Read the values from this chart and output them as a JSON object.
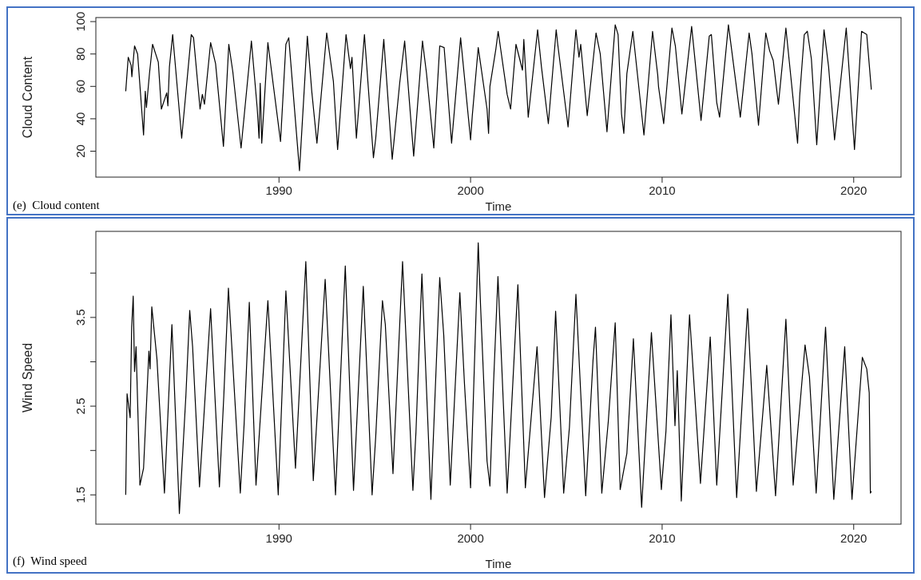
{
  "chart_data": [
    {
      "type": "line",
      "xlabel": "Time",
      "ylabel": "Cloud Content",
      "annotations": [
        "(e)  Cloud content"
      ],
      "xlim": [
        1980.44,
        2022.47
      ],
      "xticks": [
        1990,
        2000,
        2010,
        2020
      ],
      "ylim": [
        4,
        102.5
      ],
      "yticks": [
        20,
        40,
        60,
        80,
        100
      ],
      "x": [
        1982.0,
        1982.13,
        1982.28,
        1982.32,
        1982.46,
        1982.62,
        1982.93,
        1983.02,
        1983.08,
        1983.24,
        1983.4,
        1983.7,
        1983.86,
        1984.14,
        1984.2,
        1984.28,
        1984.45,
        1984.92,
        1985.42,
        1985.54,
        1985.88,
        1986.0,
        1986.11,
        1986.43,
        1986.69,
        1987.1,
        1987.38,
        1987.59,
        1988.02,
        1988.56,
        1988.86,
        1988.96,
        1989.02,
        1989.1,
        1989.42,
        1990.08,
        1990.36,
        1990.51,
        1991.07,
        1991.48,
        1991.71,
        1991.98,
        1992.49,
        1992.84,
        1993.06,
        1993.5,
        1993.73,
        1993.81,
        1994.04,
        1994.46,
        1994.93,
        1995.05,
        1995.47,
        1995.91,
        1996.3,
        1996.56,
        1997.03,
        1997.49,
        1997.7,
        1998.08,
        1998.39,
        1998.62,
        1999.01,
        1999.48,
        2000.0,
        2000.09,
        2000.4,
        2000.86,
        2000.94,
        2001.01,
        2001.32,
        2001.44,
        2001.91,
        2002.09,
        2002.37,
        2002.71,
        2002.78,
        2003.01,
        2003.5,
        2003.7,
        2004.06,
        2004.47,
        2004.55,
        2005.09,
        2005.5,
        2005.66,
        2005.75,
        2006.09,
        2006.55,
        2006.77,
        2007.12,
        2007.55,
        2007.7,
        2007.88,
        2008.0,
        2008.16,
        2008.47,
        2009.05,
        2009.5,
        2009.77,
        2009.81,
        2010.08,
        2010.51,
        2010.69,
        2011.03,
        2011.54,
        2012.03,
        2012.46,
        2012.57,
        2012.85,
        2013.0,
        2013.46,
        2014.08,
        2014.54,
        2014.69,
        2015.03,
        2015.41,
        2015.61,
        2015.8,
        2016.07,
        2016.46,
        2017.07,
        2017.18,
        2017.42,
        2017.58,
        2017.79,
        2018.07,
        2018.45,
        2018.69,
        2019.0,
        2019.61,
        2020.04,
        2020.41,
        2020.68,
        2020.92
      ],
      "series": [
        {
          "color": "#000000",
          "values": [
            57,
            78,
            73,
            66,
            85,
            80,
            30,
            57,
            47,
            68,
            86,
            75,
            46,
            56,
            48,
            72,
            92,
            28,
            92,
            90,
            46,
            55,
            49,
            87,
            74,
            23,
            86,
            69,
            22,
            88,
            47,
            28,
            62,
            25,
            87,
            26,
            86,
            90,
            8,
            91,
            57,
            25,
            93,
            63,
            21,
            92,
            71,
            78,
            28,
            92,
            16,
            28,
            89,
            15,
            62,
            88,
            17,
            88,
            68,
            22,
            85,
            84,
            25,
            90,
            27,
            42,
            84,
            46,
            31,
            60,
            83,
            94,
            55,
            46,
            86,
            70,
            89,
            41,
            95,
            72,
            37,
            95,
            86,
            35,
            95,
            78,
            86,
            42,
            93,
            80,
            32,
            98,
            92,
            43,
            31,
            68,
            94,
            30,
            94,
            67,
            60,
            37,
            96,
            85,
            43,
            97,
            39,
            91,
            92,
            50,
            41,
            98,
            41,
            93,
            80,
            36,
            93,
            82,
            76,
            49,
            96,
            25,
            54,
            92,
            94,
            77,
            24,
            95,
            72,
            27,
            96,
            21,
            94,
            92,
            58
          ]
        }
      ]
    },
    {
      "type": "line",
      "xlabel": "Time",
      "ylabel": "Wind Speed",
      "annotations": [
        "(f)  Wind speed"
      ],
      "xlim": [
        1980.44,
        2022.47
      ],
      "xticks": [
        1990,
        2000,
        2010,
        2020
      ],
      "ylim": [
        1.17,
        4.47
      ],
      "yticks": [
        1.5,
        {
          "value": 2,
          "label": null
        },
        2.5,
        {
          "value": 3,
          "label": null
        },
        3.5,
        {
          "value": 4,
          "label": null
        }
      ],
      "x": [
        1982.0,
        1982.07,
        1982.23,
        1982.31,
        1982.39,
        1982.46,
        1982.54,
        1982.74,
        1982.93,
        1983.21,
        1983.27,
        1983.36,
        1983.63,
        1984.02,
        1984.41,
        1984.8,
        1985.14,
        1985.34,
        1985.49,
        1985.85,
        1986.43,
        1986.89,
        1987.12,
        1987.36,
        1987.98,
        1988.18,
        1988.45,
        1988.8,
        1989.42,
        1989.96,
        1990.36,
        1990.86,
        1991.4,
        1991.79,
        1992.41,
        1992.95,
        1993.46,
        1993.89,
        1994.4,
        1994.86,
        1995.05,
        1995.4,
        1995.55,
        1995.95,
        1996.45,
        1996.99,
        1997.15,
        1997.46,
        1997.93,
        1998.39,
        1998.6,
        1998.94,
        1999.44,
        1999.68,
        2000.0,
        2000.4,
        2000.52,
        2000.86,
        2001.01,
        2001.2,
        2001.43,
        2001.91,
        2002.47,
        2002.86,
        2003.47,
        2003.86,
        2004.21,
        2004.44,
        2004.86,
        2005.16,
        2005.5,
        2006.01,
        2006.39,
        2006.52,
        2006.85,
        2007.19,
        2007.55,
        2007.81,
        2008.16,
        2008.5,
        2008.93,
        2009.44,
        2009.96,
        2010.2,
        2010.46,
        2010.67,
        2010.79,
        2011.0,
        2011.43,
        2012.0,
        2012.51,
        2012.85,
        2013.43,
        2013.89,
        2014.46,
        2014.92,
        2015.46,
        2015.92,
        2016.46,
        2016.84,
        2017.46,
        2017.69,
        2018.04,
        2018.53,
        2018.96,
        2019.53,
        2019.91,
        2020.45,
        2020.68,
        2020.81,
        2020.87,
        2020.92
      ],
      "series": [
        {
          "color": "#000000",
          "values": [
            1.5,
            2.64,
            2.37,
            3.39,
            3.74,
            2.89,
            3.17,
            1.61,
            1.8,
            3.12,
            2.92,
            3.62,
            3.03,
            1.52,
            3.42,
            1.29,
            2.62,
            3.58,
            3.17,
            1.59,
            3.6,
            1.59,
            2.62,
            3.83,
            1.52,
            2.3,
            3.67,
            1.61,
            3.69,
            1.5,
            3.8,
            1.8,
            4.13,
            1.66,
            3.93,
            1.5,
            4.08,
            1.55,
            3.85,
            1.5,
            2.16,
            3.69,
            3.42,
            1.74,
            4.13,
            1.55,
            2.21,
            3.99,
            1.45,
            3.95,
            3.3,
            1.61,
            3.78,
            2.76,
            1.58,
            4.34,
            3.64,
            1.88,
            1.6,
            2.76,
            3.96,
            1.52,
            3.87,
            1.58,
            3.17,
            1.47,
            2.38,
            3.57,
            1.52,
            2.26,
            3.76,
            1.49,
            3.01,
            3.39,
            1.52,
            2.33,
            3.44,
            1.56,
            1.97,
            3.26,
            1.36,
            3.33,
            1.56,
            2.22,
            3.53,
            2.28,
            2.9,
            1.43,
            3.53,
            1.63,
            3.28,
            1.61,
            3.76,
            1.47,
            3.6,
            1.54,
            2.96,
            1.49,
            3.48,
            1.61,
            3.19,
            2.83,
            1.52,
            3.39,
            1.45,
            3.17,
            1.45,
            3.05,
            2.92,
            2.65,
            1.52,
            1.54
          ]
        }
      ]
    }
  ]
}
